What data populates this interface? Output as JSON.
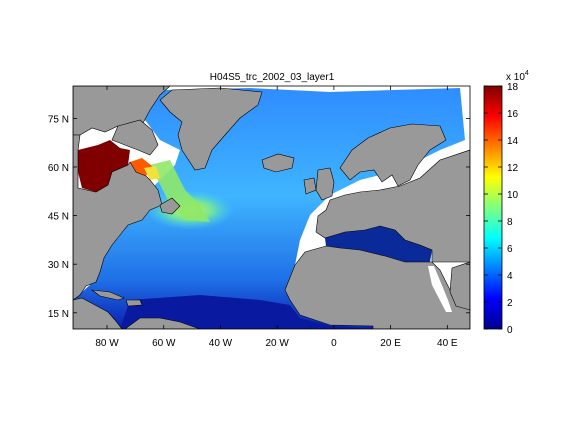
{
  "map": {
    "title": "H04S5_trc_2002_03_layer1",
    "lon_ticks": [
      {
        "value": -80,
        "label": "80 W"
      },
      {
        "value": -60,
        "label": "60 W"
      },
      {
        "value": -40,
        "label": "40 W"
      },
      {
        "value": -20,
        "label": "20 W"
      },
      {
        "value": 0,
        "label": "0"
      },
      {
        "value": 20,
        "label": "20 E"
      },
      {
        "value": 40,
        "label": "40 E"
      }
    ],
    "lat_ticks": [
      {
        "value": 75,
        "label": "75 N"
      },
      {
        "value": 60,
        "label": "60 N"
      },
      {
        "value": 45,
        "label": "45 N"
      },
      {
        "value": 30,
        "label": "30 N"
      },
      {
        "value": 15,
        "label": "15 N"
      }
    ],
    "extent": {
      "lon": [
        -92,
        48
      ],
      "lat": [
        10,
        85
      ]
    }
  },
  "colorbar": {
    "exponent_label": "x 10",
    "exponent_power": "4",
    "ticks": [
      "0",
      "2",
      "4",
      "6",
      "8",
      "10",
      "12",
      "14",
      "16",
      "18"
    ],
    "range": [
      0,
      18
    ],
    "colormap": "jet"
  },
  "colors": {
    "land": "#999999",
    "background": "#ffffff",
    "low": "#00008f",
    "high": "#800000"
  }
}
